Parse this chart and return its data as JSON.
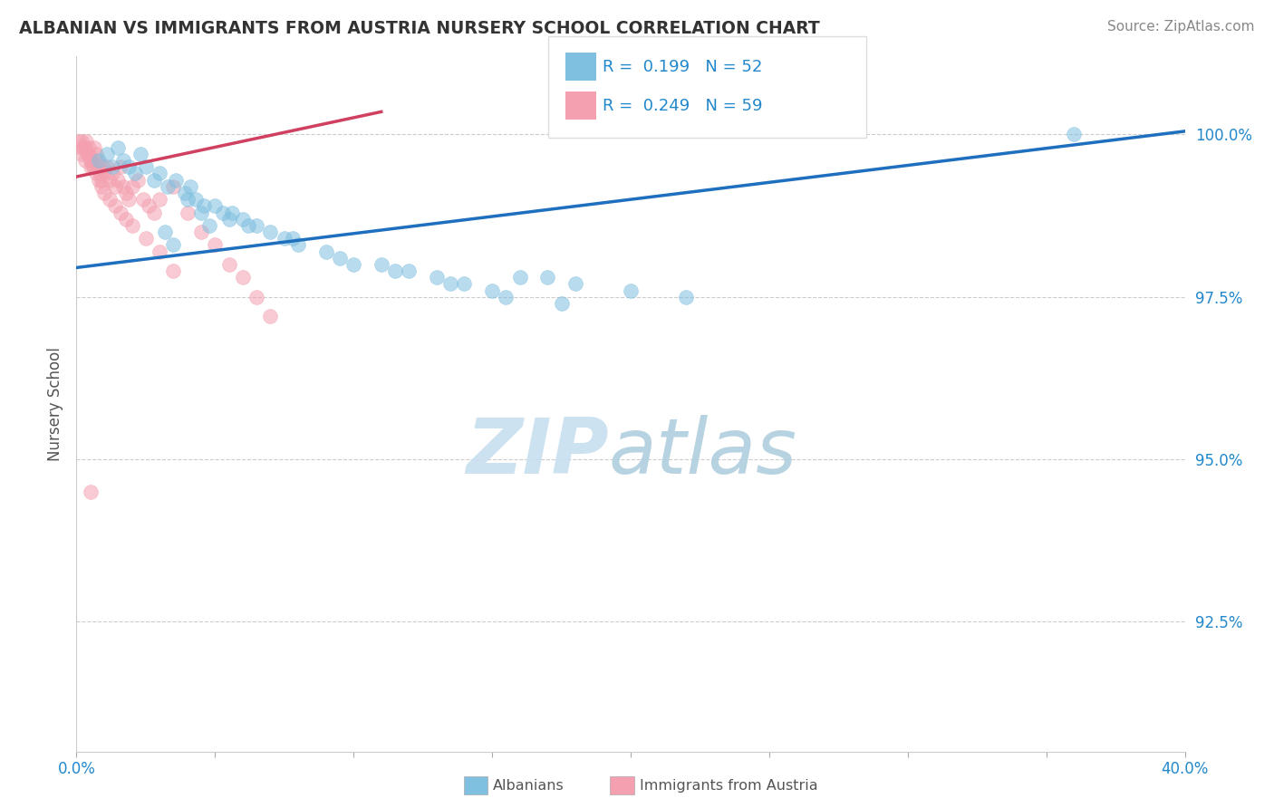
{
  "title": "ALBANIAN VS IMMIGRANTS FROM AUSTRIA NURSERY SCHOOL CORRELATION CHART",
  "source": "Source: ZipAtlas.com",
  "ylabel": "Nursery School",
  "xlim": [
    0.0,
    40.0
  ],
  "ylim": [
    90.5,
    101.2
  ],
  "yticks": [
    92.5,
    95.0,
    97.5,
    100.0
  ],
  "ytick_labels": [
    "92.5%",
    "95.0%",
    "97.5%",
    "100.0%"
  ],
  "color_blue": "#7fbfdf",
  "color_pink": "#f4a0b0",
  "color_blue_line": "#1f6fbf",
  "color_pink_line": "#d04060",
  "blue_line_x": [
    0.0,
    40.0
  ],
  "blue_line_y": [
    97.95,
    100.05
  ],
  "pink_line_x": [
    0.0,
    11.0
  ],
  "pink_line_y": [
    99.35,
    100.35
  ],
  "blue_dots_x": [
    0.8,
    1.1,
    1.3,
    1.5,
    1.7,
    1.9,
    2.1,
    2.3,
    2.5,
    2.8,
    3.0,
    3.3,
    3.6,
    3.9,
    4.1,
    4.3,
    4.6,
    5.0,
    5.3,
    5.6,
    6.0,
    6.5,
    7.0,
    7.5,
    8.0,
    9.0,
    10.0,
    11.0,
    12.0,
    13.0,
    14.0,
    15.0,
    16.0,
    17.0,
    18.0,
    20.0,
    22.0,
    4.0,
    4.5,
    5.5,
    6.2,
    7.8,
    9.5,
    11.5,
    13.5,
    15.5,
    17.5,
    36.0,
    3.2,
    3.5,
    4.8
  ],
  "blue_dots_y": [
    99.6,
    99.7,
    99.5,
    99.8,
    99.6,
    99.5,
    99.4,
    99.7,
    99.5,
    99.3,
    99.4,
    99.2,
    99.3,
    99.1,
    99.2,
    99.0,
    98.9,
    98.9,
    98.8,
    98.8,
    98.7,
    98.6,
    98.5,
    98.4,
    98.3,
    98.2,
    98.0,
    98.0,
    97.9,
    97.8,
    97.7,
    97.6,
    97.8,
    97.8,
    97.7,
    97.6,
    97.5,
    99.0,
    98.8,
    98.7,
    98.6,
    98.4,
    98.1,
    97.9,
    97.7,
    97.5,
    97.4,
    100.0,
    98.5,
    98.3,
    98.6
  ],
  "pink_dots_x": [
    0.1,
    0.15,
    0.2,
    0.25,
    0.3,
    0.35,
    0.4,
    0.45,
    0.5,
    0.55,
    0.6,
    0.65,
    0.7,
    0.75,
    0.8,
    0.85,
    0.9,
    0.95,
    1.0,
    1.1,
    1.2,
    1.3,
    1.4,
    1.5,
    1.6,
    1.7,
    1.8,
    1.9,
    2.0,
    2.2,
    2.4,
    2.6,
    2.8,
    3.0,
    3.5,
    4.0,
    4.5,
    5.0,
    5.5,
    6.0,
    6.5,
    7.0,
    0.2,
    0.3,
    0.4,
    0.5,
    0.6,
    0.7,
    0.8,
    0.9,
    1.0,
    1.2,
    1.4,
    1.6,
    1.8,
    2.0,
    2.5,
    3.0,
    3.5,
    0.5
  ],
  "pink_dots_y": [
    99.9,
    99.8,
    99.7,
    99.8,
    99.6,
    99.9,
    99.7,
    99.8,
    99.5,
    99.6,
    99.5,
    99.8,
    99.7,
    99.6,
    99.5,
    99.4,
    99.3,
    99.5,
    99.4,
    99.5,
    99.3,
    99.4,
    99.2,
    99.3,
    99.5,
    99.2,
    99.1,
    99.0,
    99.2,
    99.3,
    99.0,
    98.9,
    98.8,
    99.0,
    99.2,
    98.8,
    98.5,
    98.3,
    98.0,
    97.8,
    97.5,
    97.2,
    99.9,
    99.8,
    99.7,
    99.6,
    99.5,
    99.4,
    99.3,
    99.2,
    99.1,
    99.0,
    98.9,
    98.8,
    98.7,
    98.6,
    98.4,
    98.2,
    97.9,
    94.5
  ],
  "grid_color": "#cccccc",
  "background_color": "#ffffff",
  "watermark_zip_color": "#c8dff0",
  "watermark_atlas_color": "#b0cfdf"
}
